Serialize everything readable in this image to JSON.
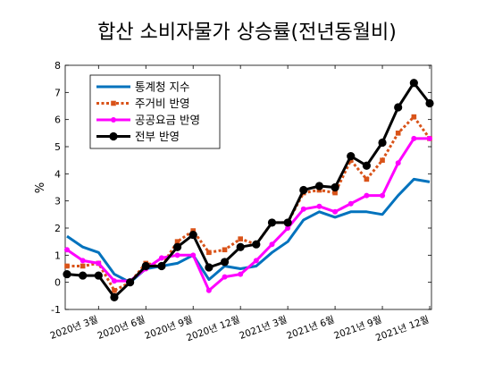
{
  "chart_data": {
    "type": "line",
    "title": "합산 소비자물가 상승률(전년동월비)",
    "ylabel": "%",
    "xlabel": "",
    "ylim": [
      -1,
      8
    ],
    "yticks": [
      -1,
      0,
      1,
      2,
      3,
      4,
      5,
      6,
      7,
      8
    ],
    "x": [
      "2020.01",
      "2020.02",
      "2020.03",
      "2020.04",
      "2020.05",
      "2020.06",
      "2020.07",
      "2020.08",
      "2020.09",
      "2020.10",
      "2020.11",
      "2020.12",
      "2021.01",
      "2021.02",
      "2021.03",
      "2021.04",
      "2021.05",
      "2021.06",
      "2021.07",
      "2021.08",
      "2021.09",
      "2021.10",
      "2021.11",
      "2021.12"
    ],
    "xtick_labels": [
      {
        "index": 2,
        "label": "2020년 3월"
      },
      {
        "index": 5,
        "label": "2020년 6월"
      },
      {
        "index": 8,
        "label": "2020년 9월"
      },
      {
        "index": 11,
        "label": "2020년 12월"
      },
      {
        "index": 14,
        "label": "2021년 3월"
      },
      {
        "index": 17,
        "label": "2021년 6월"
      },
      {
        "index": 20,
        "label": "2021년 9월"
      },
      {
        "index": 23,
        "label": "2021년 12월"
      }
    ],
    "legend_position": "top-left",
    "series": [
      {
        "name": "통계청 지수",
        "color": "#0072BD",
        "style": "solid",
        "marker": "none",
        "values": [
          1.7,
          1.3,
          1.1,
          0.3,
          0.0,
          0.5,
          0.6,
          0.7,
          1.0,
          0.1,
          0.6,
          0.5,
          0.6,
          1.1,
          1.5,
          2.3,
          2.6,
          2.4,
          2.6,
          2.6,
          2.5,
          3.2,
          3.8,
          3.7
        ]
      },
      {
        "name": "주거비 반영",
        "color": "#D95319",
        "style": "dotted",
        "marker": "square",
        "values": [
          0.6,
          0.6,
          0.7,
          -0.3,
          0.0,
          0.7,
          0.6,
          1.5,
          1.9,
          1.1,
          1.2,
          1.6,
          1.4,
          2.2,
          2.2,
          3.3,
          3.4,
          3.3,
          4.5,
          3.8,
          4.5,
          5.5,
          6.1,
          5.3
        ]
      },
      {
        "name": "공공요금 반영",
        "color": "#FF00FF",
        "style": "solid",
        "marker": "dot",
        "values": [
          1.2,
          0.8,
          0.7,
          0.05,
          0.05,
          0.5,
          0.9,
          1.0,
          1.0,
          -0.3,
          0.2,
          0.3,
          0.8,
          1.4,
          2.0,
          2.7,
          2.8,
          2.6,
          2.9,
          3.2,
          3.2,
          4.4,
          5.3,
          5.3
        ]
      },
      {
        "name": "전부 반영",
        "color": "#000000",
        "style": "solid",
        "marker": "circle",
        "values": [
          0.3,
          0.25,
          0.25,
          -0.55,
          0.0,
          0.6,
          0.6,
          1.3,
          1.75,
          0.55,
          0.75,
          1.3,
          1.4,
          2.2,
          2.2,
          3.4,
          3.55,
          3.5,
          4.65,
          4.3,
          5.15,
          6.45,
          7.35,
          6.6
        ]
      }
    ]
  }
}
